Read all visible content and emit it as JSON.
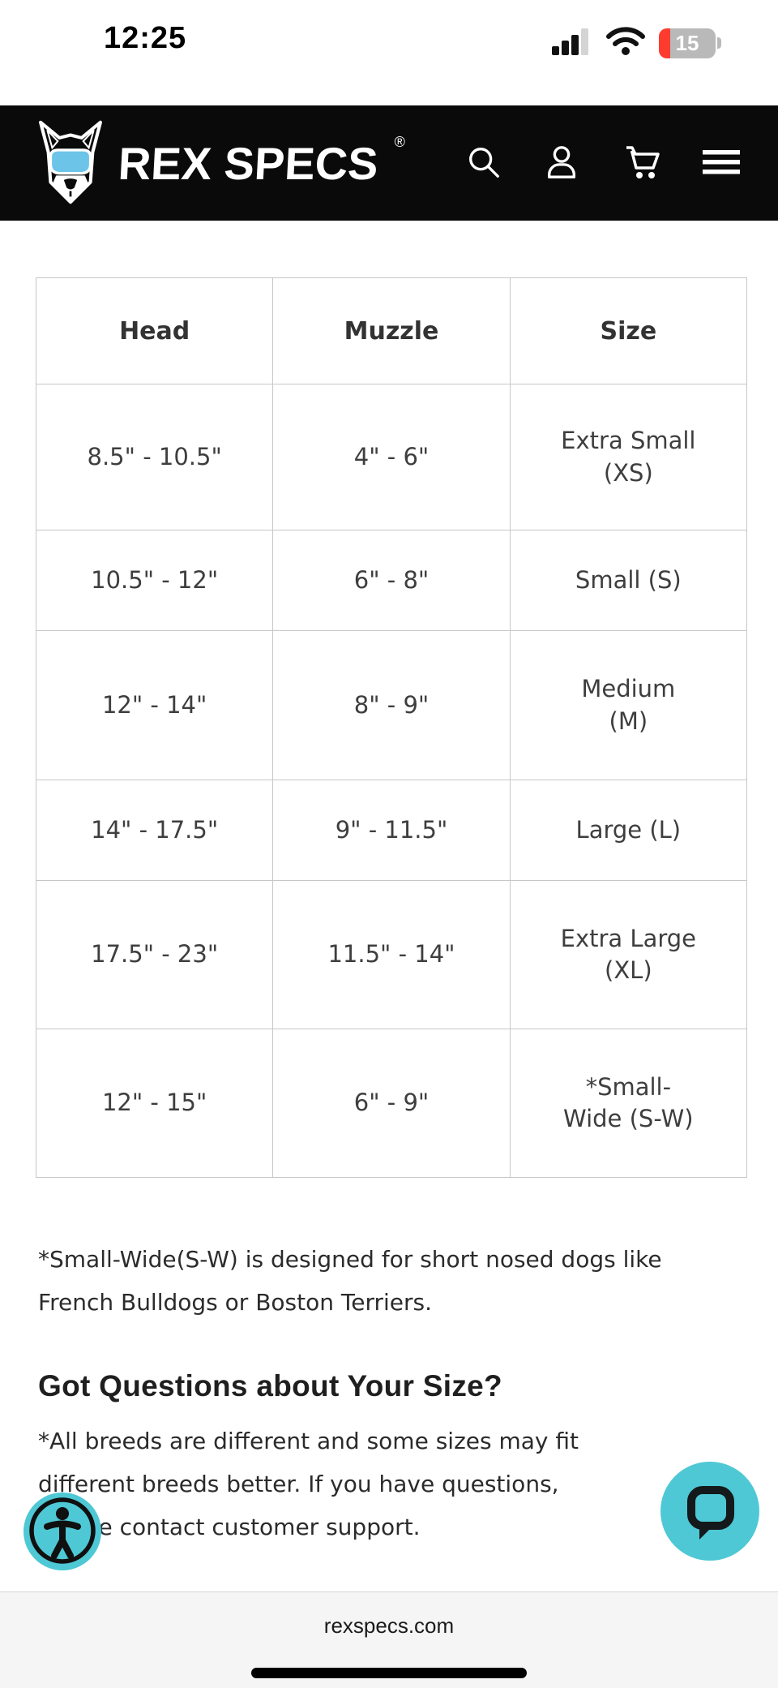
{
  "status_bar": {
    "time": "12:25",
    "battery_percent": "15"
  },
  "header": {
    "brand": "REX SPECS",
    "registered_mark": "®"
  },
  "size_chart": {
    "columns": [
      "Head",
      "Muzzle",
      "Size"
    ],
    "rows": [
      {
        "head": "8.5\" - 10.5\"",
        "muzzle": "4\" - 6\"",
        "size": "Extra Small\n(XS)"
      },
      {
        "head": "10.5\" - 12\"",
        "muzzle": "6\" - 8\"",
        "size": "Small (S)"
      },
      {
        "head": "12\" - 14\"",
        "muzzle": "8\" - 9\"",
        "size": "Medium\n(M)"
      },
      {
        "head": "14\" - 17.5\"",
        "muzzle": "9\" - 11.5\"",
        "size": "Large (L)"
      },
      {
        "head": "17.5\" - 23\"",
        "muzzle": "11.5\" - 14\"",
        "size": "Extra Large\n(XL)"
      },
      {
        "head": "12\" - 15\"",
        "muzzle": "6\" - 9\"",
        "size": "*Small-\nWide (S-W)"
      }
    ]
  },
  "notes": {
    "small_wide_note": "*Small-Wide(S-W) is designed for short nosed dogs like\nFrench Bulldogs or Boston Terriers."
  },
  "questions": {
    "heading": "Got Questions about Your Size?",
    "body": "*All breeds are different and some sizes may fit\ndifferent breeds better. If you have questions,\nplease contact customer support."
  },
  "footer": {
    "url": "rexspecs.com"
  },
  "colors": {
    "accent_teal": "#4ec8d5",
    "goggles_blue": "#6cc4e9",
    "battery_red": "#ff3b30",
    "header_bg": "#0a0a0a"
  }
}
